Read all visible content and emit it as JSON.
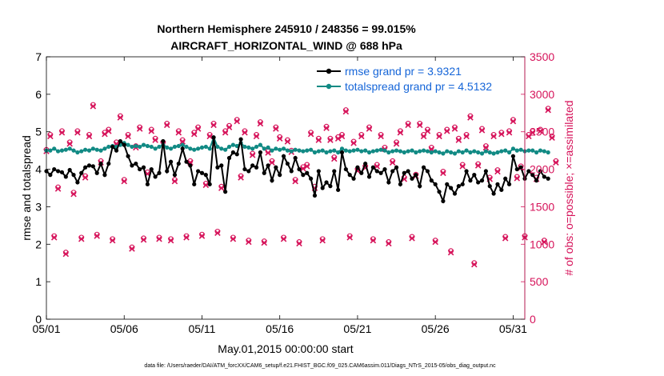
{
  "chart_data": {
    "type": "line",
    "title": "Northern Hemisphere 245910 / 248356 = 99.015%",
    "subtitle": "AIRCRAFT_HORIZONTAL_WIND @ 688 hPa",
    "xlabel": "May.01,2015 00:00:00 start",
    "ylabel": "rmse and totalspread",
    "ylabel_right": "# of obs: o=possible; ×=assimilated",
    "footnote": "data file: /Users/raeder/DAI/ATM_forcXX/CAM6_setup/f.e21.FHIST_BGC.f09_025.CAM6assim.011/Diags_NTrS_2015-05/obs_diag_output.nc",
    "x_ticks": [
      "05/01",
      "05/06",
      "05/11",
      "05/16",
      "05/21",
      "05/26",
      "05/31"
    ],
    "x_tick_days": [
      0,
      5,
      10,
      15,
      20,
      25,
      30
    ],
    "xlim": [
      0,
      30.75
    ],
    "ylim": [
      0,
      7
    ],
    "y_ticks": [
      0,
      1,
      2,
      3,
      4,
      5,
      6,
      7
    ],
    "ylim_right": [
      0,
      3500
    ],
    "y_ticks_right": [
      0,
      500,
      1000,
      1500,
      2000,
      2500,
      3000,
      3500
    ],
    "legend": [
      {
        "label": "rmse grand pr = 3.9321",
        "color": "#000000"
      },
      {
        "label": "totalspread grand pr = 4.5132",
        "color": "#118a84"
      }
    ],
    "series": [
      {
        "name": "rmse",
        "color": "#000000",
        "x_start": 0,
        "x_step": 0.25,
        "values": [
          3.95,
          3.85,
          4.0,
          3.95,
          3.92,
          3.8,
          3.98,
          3.85,
          3.65,
          3.9,
          4.05,
          4.1,
          4.08,
          3.9,
          4.15,
          3.85,
          4.15,
          4.6,
          4.5,
          4.75,
          4.65,
          4.35,
          4.1,
          4.15,
          4.0,
          4.05,
          3.6,
          4.0,
          3.8,
          3.9,
          4.75,
          3.95,
          4.2,
          3.85,
          4.15,
          4.55,
          4.2,
          4.1,
          3.6,
          3.95,
          3.9,
          3.85,
          3.6,
          4.85,
          4.05,
          4.1,
          3.4,
          4.3,
          4.45,
          4.4,
          4.8,
          4.0,
          3.95,
          4.1,
          4.05,
          4.45,
          3.9,
          4.1,
          3.7,
          4.05,
          3.85,
          4.35,
          4.15,
          3.95,
          4.3,
          4.0,
          3.85,
          3.9,
          3.75,
          3.3,
          3.95,
          3.5,
          3.65,
          3.55,
          3.95,
          3.45,
          4.45,
          4.0,
          3.85,
          3.75,
          4.05,
          3.9,
          4.15,
          3.8,
          4.05,
          3.95,
          3.9,
          4.0,
          3.65,
          3.95,
          4.05,
          3.6,
          3.9,
          3.95,
          3.75,
          3.85,
          3.55,
          4.05,
          3.95,
          3.7,
          3.6,
          3.4,
          3.15,
          3.6,
          3.5,
          3.35,
          3.55,
          3.6,
          3.95,
          3.7,
          3.85,
          3.65,
          3.7,
          3.95,
          3.55,
          3.35,
          3.6,
          3.45,
          3.75,
          3.6,
          4.35,
          4.0,
          4.05,
          3.75,
          3.95,
          3.85,
          3.7,
          3.95,
          3.8,
          3.75
        ]
      },
      {
        "name": "totalspread",
        "color": "#118a84",
        "x_start": 0,
        "x_step": 0.25,
        "values": [
          4.5,
          4.5,
          4.55,
          4.48,
          4.5,
          4.52,
          4.55,
          4.5,
          4.45,
          4.48,
          4.52,
          4.5,
          4.55,
          4.52,
          4.5,
          4.55,
          4.6,
          4.62,
          4.6,
          4.65,
          4.7,
          4.65,
          4.6,
          4.62,
          4.6,
          4.65,
          4.62,
          4.6,
          4.55,
          4.6,
          4.65,
          4.58,
          4.55,
          4.6,
          4.62,
          4.65,
          4.6,
          4.55,
          4.52,
          4.55,
          4.58,
          4.6,
          4.55,
          4.85,
          4.6,
          4.55,
          4.52,
          4.6,
          4.65,
          4.62,
          4.7,
          4.6,
          4.58,
          4.55,
          4.6,
          4.65,
          4.55,
          4.58,
          4.5,
          4.55,
          4.52,
          4.55,
          4.5,
          4.48,
          4.52,
          4.5,
          4.48,
          4.5,
          4.52,
          4.45,
          4.48,
          4.5,
          4.45,
          4.48,
          4.5,
          4.45,
          4.55,
          4.5,
          4.48,
          4.5,
          4.52,
          4.48,
          4.5,
          4.45,
          4.48,
          4.5,
          4.52,
          4.5,
          4.45,
          4.48,
          4.5,
          4.48,
          4.45,
          4.48,
          4.5,
          4.45,
          4.48,
          4.5,
          4.48,
          4.45,
          4.48,
          4.45,
          4.42,
          4.48,
          4.45,
          4.42,
          4.48,
          4.45,
          4.5,
          4.45,
          4.48,
          4.45,
          4.42,
          4.48,
          4.45,
          4.42,
          4.45,
          4.48,
          4.5,
          4.45,
          4.55,
          4.5,
          4.52,
          4.48,
          4.5,
          4.5,
          4.45,
          4.5,
          4.48,
          4.45
        ]
      },
      {
        "name": "obs possible/assimilated",
        "color": "#d6135a",
        "axis": "right",
        "marker": "o/x",
        "x_start": 0,
        "x_step": 0.25,
        "values": [
          2250,
          2450,
          1100,
          1750,
          2500,
          880,
          2350,
          1680,
          2500,
          1080,
          1900,
          2450,
          2850,
          1120,
          2100,
          2480,
          2520,
          1060,
          2350,
          2700,
          1850,
          2450,
          950,
          2300,
          2550,
          1070,
          1950,
          2520,
          2400,
          1080,
          2350,
          2600,
          1060,
          1850,
          2500,
          2380,
          1100,
          2100,
          2480,
          2550,
          1120,
          1800,
          2450,
          2600,
          1160,
          1760,
          2500,
          2570,
          1080,
          2650,
          1900,
          2500,
          1040,
          2200,
          2450,
          2620,
          1030,
          2230,
          2100,
          2550,
          2420,
          1080,
          2380,
          2240,
          1850,
          1020,
          2020,
          2050,
          2480,
          1760,
          2400,
          1060,
          2560,
          2400,
          2150,
          2420,
          2450,
          2780,
          1100,
          2360,
          1990,
          2450,
          2030,
          2550,
          1060,
          2050,
          2450,
          2280,
          1020,
          2100,
          2350,
          2500,
          1880,
          2600,
          1090,
          1920,
          2600,
          2450,
          2520,
          2280,
          1040,
          2450,
          1960,
          2520,
          900,
          2550,
          2400,
          2050,
          2450,
          2700,
          740,
          2060,
          2530,
          2300,
          1880,
          2450,
          1980,
          2480,
          1090,
          2500,
          2650,
          1890,
          2030,
          1100,
          2450,
          2500,
          1880,
          2520,
          1040,
          2800,
          2430,
          2100
        ]
      }
    ]
  }
}
